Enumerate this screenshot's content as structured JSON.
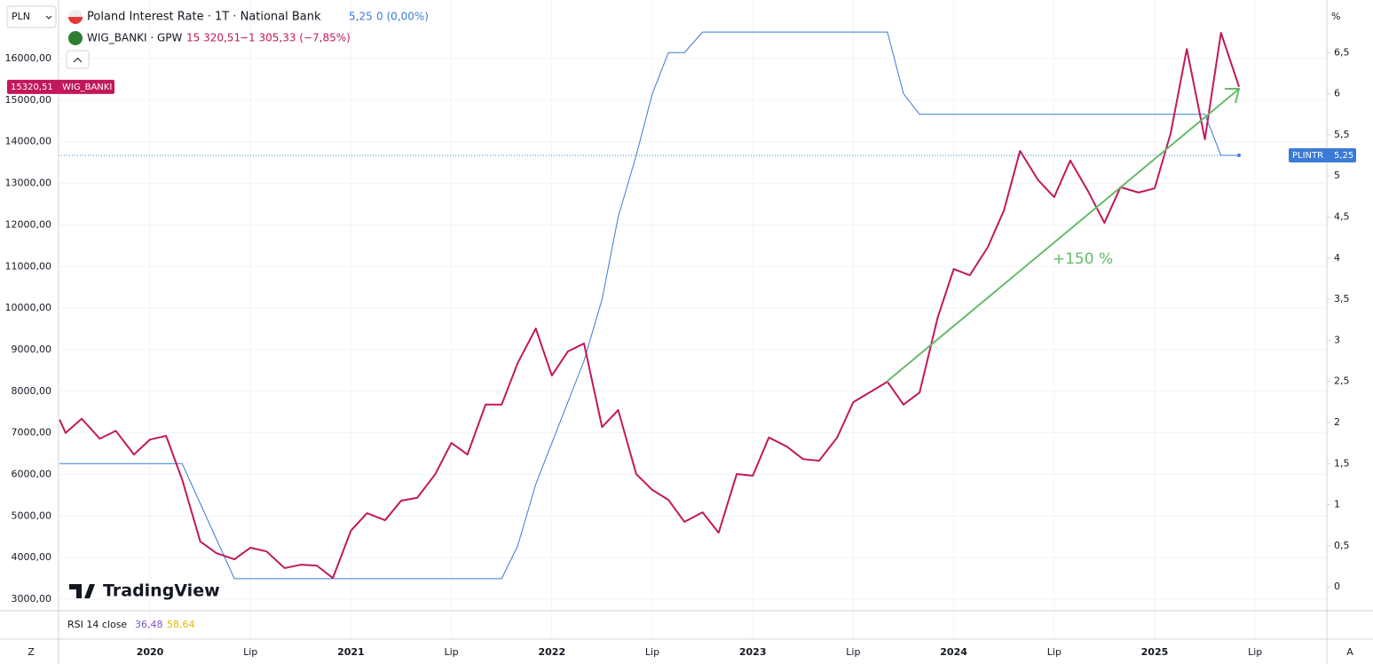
{
  "chart_data": {
    "type": "line",
    "currency": "PLN",
    "right_unit": "%",
    "annotation": "+150 %",
    "indicator": {
      "name": "RSI 14 close",
      "values": [
        "36,48",
        "58,64"
      ]
    },
    "brand": "TradingView",
    "corner_left": "Z",
    "corner_right": "A",
    "xlim": [
      2019.545,
      2025.857
    ],
    "xticks": [
      2020,
      {
        "value": 2020.5,
        "label": "Lip"
      },
      2021,
      {
        "value": 2021.5,
        "label": "Lip"
      },
      2022,
      {
        "value": 2022.5,
        "label": "Lip"
      },
      2023,
      {
        "value": 2023.5,
        "label": "Lip"
      },
      2024,
      {
        "value": 2024.5,
        "label": "Lip"
      },
      2025,
      {
        "value": 2025.5,
        "label": "Lip"
      }
    ],
    "ylim": [
      2724,
      17409
    ],
    "yticks": [
      {
        "value": 3000,
        "label": "3000,00"
      },
      {
        "value": 4000,
        "label": "4000,00"
      },
      {
        "value": 5000,
        "label": "5000,00"
      },
      {
        "value": 6000,
        "label": "6000,00"
      },
      {
        "value": 7000,
        "label": "7000,00"
      },
      {
        "value": 8000,
        "label": "8000,00"
      },
      {
        "value": 9000,
        "label": "9000,00"
      },
      {
        "value": 10000,
        "label": "10000,00"
      },
      {
        "value": 11000,
        "label": "11000,00"
      },
      {
        "value": 12000,
        "label": "12000,00"
      },
      {
        "value": 13000,
        "label": "13000,00"
      },
      {
        "value": 14000,
        "label": "14000,00"
      },
      {
        "value": 15000,
        "label": "15000,00"
      },
      {
        "value": 16000,
        "label": "16000,00"
      }
    ],
    "y2lim": [
      -0.29,
      7.14
    ],
    "y2ticks": [
      0,
      {
        "value": 0.5,
        "label": "0,5"
      },
      1,
      {
        "value": 1.5,
        "label": "1,5"
      },
      2,
      {
        "value": 2.5,
        "label": "2,5"
      },
      3,
      {
        "value": 3.5,
        "label": "3,5"
      },
      4,
      {
        "value": 4.5,
        "label": "4,5"
      },
      5,
      {
        "value": 5.5,
        "label": "5,5"
      },
      6,
      {
        "value": 6.5,
        "label": "6,5"
      }
    ],
    "grid": true,
    "series": [
      {
        "name": "Poland Interest Rate · 1T · National Bank",
        "tag": "PLINTR",
        "last_label": "5,25",
        "change": "0 (0,00%)",
        "color": "#3a7bd5",
        "axis": "y2",
        "x": [
          2019.55,
          2020.16,
          2020.42,
          2021.75,
          2021.83,
          2021.92,
          2022.16,
          2022.25,
          2022.33,
          2022.42,
          2022.5,
          2022.58,
          2022.66,
          2022.75,
          2023.67,
          2023.75,
          2023.83,
          2025.25,
          2025.33,
          2025.42
        ],
        "values": [
          1.5,
          1.5,
          0.1,
          0.1,
          0.5,
          1.25,
          2.75,
          3.5,
          4.5,
          5.25,
          6.0,
          6.5,
          6.5,
          6.75,
          6.75,
          6.0,
          5.75,
          5.75,
          5.25,
          5.25
        ]
      },
      {
        "name": "WIG_BANKI · GPW",
        "tag": "WIG_BANKI",
        "last_label": "15 320,51",
        "price_tag": "15320,51",
        "change": "−1 305,33 (−7,85%)",
        "color": "#c2185b",
        "x": [
          2019.55,
          2019.58,
          2019.66,
          2019.75,
          2019.83,
          2019.92,
          2020.0,
          2020.08,
          2020.16,
          2020.25,
          2020.33,
          2020.42,
          2020.5,
          2020.58,
          2020.67,
          2020.75,
          2020.83,
          2020.91,
          2021.0,
          2021.08,
          2021.17,
          2021.25,
          2021.33,
          2021.42,
          2021.5,
          2021.58,
          2021.67,
          2021.75,
          2021.83,
          2021.92,
          2022.0,
          2022.08,
          2022.16,
          2022.25,
          2022.33,
          2022.42,
          2022.5,
          2022.58,
          2022.66,
          2022.75,
          2022.83,
          2022.92,
          2023.0,
          2023.08,
          2023.17,
          2023.25,
          2023.33,
          2023.42,
          2023.5,
          2023.58,
          2023.67,
          2023.75,
          2023.83,
          2023.92,
          2024.0,
          2024.08,
          2024.17,
          2024.25,
          2024.33,
          2024.42,
          2024.5,
          2024.58,
          2024.67,
          2024.75,
          2024.83,
          2024.92,
          2025.0,
          2025.08,
          2025.16,
          2025.25,
          2025.33,
          2025.42
        ],
        "values": [
          7320,
          7000,
          7340,
          6860,
          7050,
          6480,
          6840,
          6930,
          5880,
          4390,
          4110,
          3960,
          4240,
          4150,
          3750,
          3830,
          3810,
          3510,
          4650,
          5070,
          4900,
          5370,
          5440,
          6010,
          6760,
          6480,
          7680,
          7680,
          8680,
          9510,
          8380,
          8960,
          9150,
          7140,
          7550,
          6010,
          5630,
          5390,
          4860,
          5090,
          4600,
          6010,
          5970,
          6890,
          6670,
          6370,
          6330,
          6890,
          7740,
          7970,
          8230,
          7680,
          7970,
          9770,
          10940,
          10790,
          11470,
          12350,
          13780,
          13080,
          12670,
          13550,
          12800,
          12050,
          12910,
          12780,
          12880,
          14210,
          16230,
          14060,
          16620,
          15320.51
        ]
      }
    ]
  }
}
